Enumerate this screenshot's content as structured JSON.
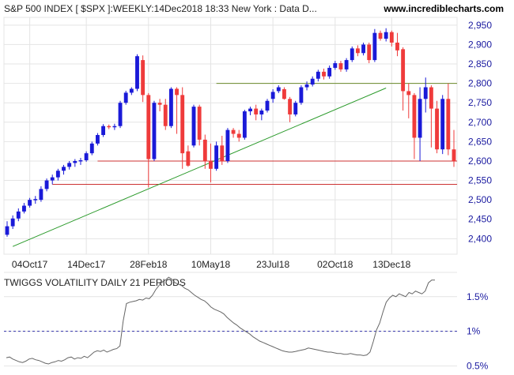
{
  "header": {
    "title": "S&P 500 INDEX [ $SPX ]:WEEKLY:14Dec2018 18:33 New York : Data D...",
    "site": "www.incrediblecharts.com"
  },
  "colors": {
    "up": "#1a1ad8",
    "down": "#ef3b3b",
    "support": "#cc3333",
    "trendline": "#2a9a2a",
    "resistance": "#6a8a2a",
    "grid": "#e4e4e4",
    "axis_text": "#1a1aa0",
    "vol_line": "#666666",
    "vol_ref": "#3333aa"
  },
  "chart_data": [
    {
      "type": "candlestick",
      "title": "S&P 500 INDEX [ $SPX ]:WEEKLY",
      "x_labels": [
        "04Oct17",
        "14Dec17",
        "28Feb18",
        "10May18",
        "23Jul18",
        "02Oct18",
        "13Dec18"
      ],
      "x_label_index": [
        4,
        14,
        25,
        36,
        47,
        58,
        68
      ],
      "ylim": [
        2360,
        2970
      ],
      "y_ticks": [
        2400,
        2450,
        2500,
        2550,
        2600,
        2650,
        2700,
        2750,
        2800,
        2850,
        2900,
        2950
      ],
      "candles": [
        [
          2410,
          2432,
          2405,
          2445
        ],
        [
          2432,
          2452,
          2425,
          2460
        ],
        [
          2452,
          2470,
          2445,
          2478
        ],
        [
          2470,
          2485,
          2465,
          2492
        ],
        [
          2485,
          2500,
          2480,
          2505
        ],
        [
          2500,
          2502,
          2490,
          2510
        ],
        [
          2500,
          2528,
          2495,
          2535
        ],
        [
          2528,
          2550,
          2522,
          2555
        ],
        [
          2550,
          2558,
          2540,
          2565
        ],
        [
          2558,
          2575,
          2550,
          2580
        ],
        [
          2575,
          2585,
          2565,
          2590
        ],
        [
          2585,
          2595,
          2578,
          2600
        ],
        [
          2595,
          2600,
          2585,
          2605
        ],
        [
          2600,
          2602,
          2590,
          2608
        ],
        [
          2602,
          2620,
          2598,
          2625
        ],
        [
          2620,
          2645,
          2615,
          2650
        ],
        [
          2645,
          2667,
          2640,
          2672
        ],
        [
          2667,
          2690,
          2662,
          2695
        ],
        [
          2690,
          2688,
          2682,
          2694
        ],
        [
          2688,
          2690,
          2680,
          2696
        ],
        [
          2690,
          2750,
          2685,
          2755
        ],
        [
          2750,
          2776,
          2745,
          2781
        ],
        [
          2776,
          2786,
          2770,
          2790
        ],
        [
          2786,
          2870,
          2780,
          2875
        ],
        [
          2860,
          2770,
          2752,
          2872
        ],
        [
          2770,
          2605,
          2532,
          2775
        ],
        [
          2605,
          2750,
          2600,
          2755
        ],
        [
          2750,
          2745,
          2728,
          2760
        ],
        [
          2745,
          2690,
          2680,
          2760
        ],
        [
          2690,
          2786,
          2685,
          2790
        ],
        [
          2786,
          2770,
          2670,
          2790
        ],
        [
          2770,
          2620,
          2580,
          2790
        ],
        [
          2625,
          2588,
          2585,
          2640
        ],
        [
          2640,
          2740,
          2635,
          2745
        ],
        [
          2740,
          2655,
          2640,
          2745
        ],
        [
          2655,
          2600,
          2580,
          2668
        ],
        [
          2600,
          2580,
          2545,
          2645
        ],
        [
          2580,
          2640,
          2575,
          2650
        ],
        [
          2640,
          2600,
          2590,
          2665
        ],
        [
          2600,
          2680,
          2595,
          2685
        ],
        [
          2680,
          2670,
          2660,
          2685
        ],
        [
          2670,
          2660,
          2650,
          2680
        ],
        [
          2660,
          2728,
          2655,
          2732
        ],
        [
          2728,
          2735,
          2718,
          2740
        ],
        [
          2735,
          2720,
          2705,
          2745
        ],
        [
          2720,
          2730,
          2705,
          2735
        ],
        [
          2730,
          2755,
          2725,
          2760
        ],
        [
          2760,
          2778,
          2750,
          2785
        ],
        [
          2780,
          2790,
          2775,
          2795
        ],
        [
          2785,
          2760,
          2758,
          2790
        ],
        [
          2760,
          2720,
          2700,
          2765
        ],
        [
          2720,
          2750,
          2715,
          2755
        ],
        [
          2750,
          2790,
          2745,
          2795
        ],
        [
          2790,
          2797,
          2782,
          2805
        ],
        [
          2797,
          2812,
          2792,
          2818
        ],
        [
          2812,
          2830,
          2805,
          2835
        ],
        [
          2830,
          2818,
          2810,
          2838
        ],
        [
          2818,
          2840,
          2812,
          2846
        ],
        [
          2840,
          2852,
          2835,
          2858
        ],
        [
          2852,
          2836,
          2830,
          2858
        ],
        [
          2836,
          2860,
          2830,
          2865
        ],
        [
          2860,
          2890,
          2855,
          2895
        ],
        [
          2890,
          2878,
          2870,
          2898
        ],
        [
          2878,
          2900,
          2872,
          2905
        ],
        [
          2900,
          2860,
          2852,
          2905
        ],
        [
          2860,
          2930,
          2855,
          2940
        ],
        [
          2930,
          2915,
          2910,
          2936
        ],
        [
          2915,
          2932,
          2908,
          2942
        ],
        [
          2932,
          2905,
          2895,
          2936
        ],
        [
          2905,
          2885,
          2870,
          2930
        ],
        [
          2888,
          2780,
          2730,
          2893
        ],
        [
          2780,
          2770,
          2710,
          2800
        ],
        [
          2770,
          2660,
          2605,
          2775
        ],
        [
          2660,
          2760,
          2600,
          2790
        ],
        [
          2760,
          2790,
          2725,
          2815
        ],
        [
          2790,
          2735,
          2635,
          2795
        ],
        [
          2735,
          2630,
          2620,
          2755
        ],
        [
          2630,
          2760,
          2618,
          2770
        ],
        [
          2760,
          2630,
          2615,
          2800
        ],
        [
          2630,
          2600,
          2585,
          2680
        ]
      ],
      "support_levels": [
        2600,
        2540
      ],
      "resistance_level": 2800,
      "trendline": {
        "from": [
          1,
          2380
        ],
        "to": [
          67,
          2788
        ]
      }
    },
    {
      "type": "line",
      "title": "TWIGGS VOLATILITY DAILY 21 PERIODS",
      "y_ticks": [
        "1.5%",
        "1%",
        "0.5%"
      ],
      "y_tick_values": [
        1.5,
        1.0,
        0.5
      ],
      "ylim": [
        0.45,
        1.85
      ],
      "reference": 1.0,
      "values": [
        0.62,
        0.63,
        0.6,
        0.58,
        0.56,
        0.55,
        0.57,
        0.6,
        0.61,
        0.59,
        0.58,
        0.56,
        0.54,
        0.53,
        0.55,
        0.56,
        0.58,
        0.57,
        0.59,
        0.62,
        0.63,
        0.6,
        0.62,
        0.61,
        0.64,
        0.62,
        0.66,
        0.7,
        0.72,
        0.71,
        0.73,
        0.7,
        0.72,
        0.74,
        0.75,
        0.79,
        1.15,
        1.4,
        1.42,
        1.43,
        1.44,
        1.46,
        1.45,
        1.48,
        1.47,
        1.52,
        1.6,
        1.66,
        1.71,
        1.74,
        1.78,
        1.75,
        1.7,
        1.68,
        1.66,
        1.62,
        1.6,
        1.56,
        1.52,
        1.49,
        1.46,
        1.44,
        1.4,
        1.35,
        1.32,
        1.3,
        1.28,
        1.25,
        1.2,
        1.16,
        1.12,
        1.09,
        1.05,
        1.02,
        0.99,
        0.96,
        0.92,
        0.89,
        0.86,
        0.84,
        0.82,
        0.8,
        0.78,
        0.76,
        0.74,
        0.72,
        0.71,
        0.7,
        0.7,
        0.71,
        0.72,
        0.73,
        0.74,
        0.76,
        0.75,
        0.74,
        0.73,
        0.72,
        0.71,
        0.7,
        0.7,
        0.69,
        0.68,
        0.68,
        0.67,
        0.67,
        0.68,
        0.67,
        0.66,
        0.66,
        0.65,
        0.66,
        0.7,
        0.85,
        1.02,
        1.12,
        1.28,
        1.42,
        1.48,
        1.52,
        1.5,
        1.54,
        1.52,
        1.5,
        1.56,
        1.54,
        1.58,
        1.56,
        1.54,
        1.58,
        1.7,
        1.74,
        1.74
      ]
    }
  ]
}
